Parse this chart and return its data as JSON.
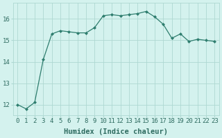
{
  "x": [
    0,
    1,
    2,
    3,
    4,
    5,
    6,
    7,
    8,
    9,
    10,
    11,
    12,
    13,
    14,
    15,
    16,
    17,
    18,
    19,
    20,
    21,
    22,
    23
  ],
  "y": [
    12.0,
    11.8,
    12.1,
    14.1,
    15.3,
    15.45,
    15.4,
    15.35,
    15.35,
    15.6,
    16.15,
    16.2,
    16.15,
    16.2,
    16.25,
    16.35,
    16.1,
    15.75,
    15.1,
    15.3,
    14.95,
    15.05,
    15.0,
    14.95
  ],
  "line_color": "#2e7d6e",
  "marker": "D",
  "marker_size": 2,
  "bg_color": "#d4f2ee",
  "grid_color": "#aed8d2",
  "xlabel": "Humidex (Indice chaleur)",
  "xlim": [
    -0.5,
    23.5
  ],
  "ylim": [
    11.5,
    16.75
  ],
  "yticks": [
    12,
    13,
    14,
    15,
    16
  ],
  "xticks": [
    0,
    1,
    2,
    3,
    4,
    5,
    6,
    7,
    8,
    9,
    10,
    11,
    12,
    13,
    14,
    15,
    16,
    17,
    18,
    19,
    20,
    21,
    22,
    23
  ],
  "tick_fontsize": 6.5,
  "xlabel_fontsize": 7.5
}
